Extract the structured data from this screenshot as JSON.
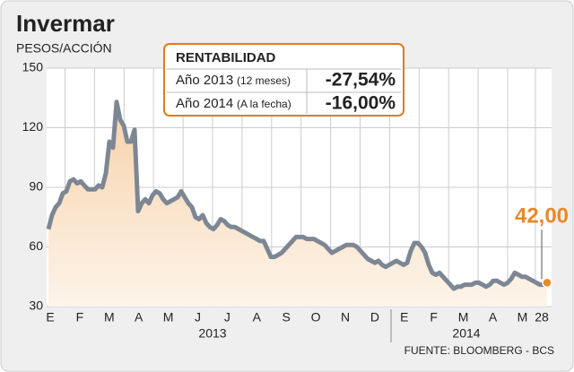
{
  "chart_data": {
    "type": "line",
    "title": "Invermar",
    "y_label": "PESOS/ACCIÓN",
    "xticks": [
      "E",
      "F",
      "M",
      "A",
      "M",
      "J",
      "J",
      "A",
      "S",
      "O",
      "N",
      "D",
      "E",
      "F",
      "M",
      "A",
      "M",
      "28"
    ],
    "years": [
      "2013",
      "2014"
    ],
    "ylim": [
      30,
      150
    ],
    "yticks": [
      30,
      60,
      90,
      120,
      150
    ],
    "grid": true,
    "color": "#7d8794",
    "end_color": "#e8892a",
    "values": [
      69,
      76,
      80,
      82,
      87,
      88,
      93,
      94,
      92,
      93,
      91,
      89,
      89,
      89,
      91,
      90,
      97,
      113,
      110,
      133,
      124,
      121,
      113,
      113,
      119,
      78,
      82,
      84,
      82,
      86,
      88,
      87,
      84,
      82,
      83,
      84,
      85,
      88,
      85,
      82,
      80,
      75,
      74,
      76,
      72,
      70,
      69,
      71,
      74,
      73,
      71,
      70,
      70,
      69,
      68,
      67,
      66,
      65,
      64,
      63,
      63,
      59,
      55,
      55,
      56,
      57,
      59,
      61,
      63,
      65,
      65,
      65,
      64,
      64,
      64,
      63,
      62,
      61,
      59,
      57,
      58,
      59,
      60,
      61,
      61,
      61,
      60,
      58,
      56,
      54,
      53,
      52,
      53,
      51,
      50,
      51,
      52,
      53,
      52,
      51,
      52,
      58,
      62,
      62,
      60,
      57,
      51,
      47,
      46,
      47,
      45,
      43,
      41,
      39,
      40,
      40,
      41,
      41,
      41,
      42,
      42,
      41,
      40,
      41,
      43,
      43,
      42,
      41,
      42,
      44,
      47,
      46,
      45,
      45,
      44,
      43,
      42,
      41,
      41,
      42
    ],
    "end_label": "42,00",
    "box": {
      "title": "RENTABILIDAD",
      "rows": [
        [
          "Año 2013",
          "(12 meses)",
          "-27,54%"
        ],
        [
          "Año 2014",
          "(A la fecha)",
          "-16,00%"
        ]
      ]
    },
    "source": "FUENTE: BLOOMBERG - BCS"
  }
}
